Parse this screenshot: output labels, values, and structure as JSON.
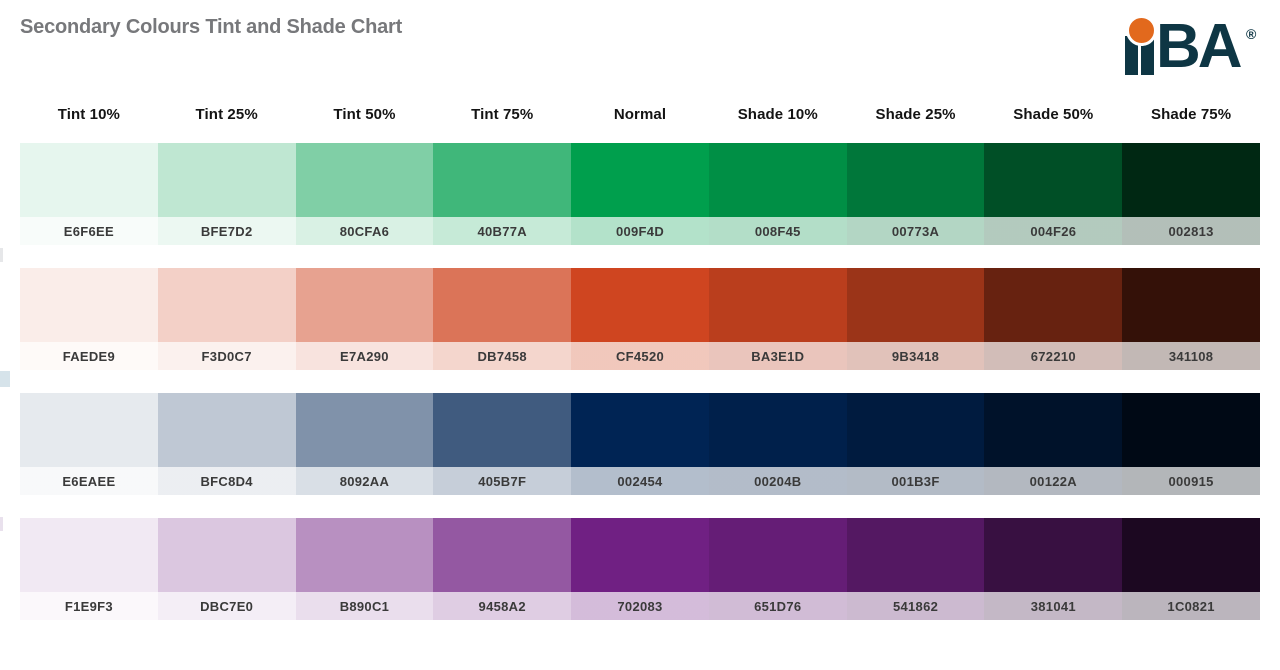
{
  "chart_data": {
    "type": "table",
    "title": "Secondary Colours Tint and Shade Chart",
    "columns": [
      "Tint 10%",
      "Tint 25%",
      "Tint 50%",
      "Tint 75%",
      "Normal",
      "Shade 10%",
      "Shade 25%",
      "Shade 50%",
      "Shade 75%"
    ],
    "rows": [
      {
        "name": "green",
        "colors": [
          "E6F6EE",
          "BFE7D2",
          "80CFA6",
          "40B77A",
          "009F4D",
          "008F45",
          "00773A",
          "004F26",
          "002813"
        ]
      },
      {
        "name": "red-orange",
        "colors": [
          "FAEDE9",
          "F3D0C7",
          "E7A290",
          "DB7458",
          "CF4520",
          "BA3E1D",
          "9B3418",
          "672210",
          "341108"
        ]
      },
      {
        "name": "navy",
        "colors": [
          "E6EAEE",
          "BFC8D4",
          "8092AA",
          "405B7F",
          "002454",
          "00204B",
          "001B3F",
          "00122A",
          "000915"
        ]
      },
      {
        "name": "purple",
        "colors": [
          "F1E9F3",
          "DBC7E0",
          "B890C1",
          "9458A2",
          "702083",
          "651D76",
          "541862",
          "381041",
          "1C0821"
        ]
      }
    ],
    "label_text_color": "#3a3a3a",
    "label_strip_white_overlay": 0.7,
    "legend_position": "none",
    "grid": false
  },
  "logo": {
    "icon": "iiba-logo",
    "text": "BA",
    "registered_mark": "®",
    "ink_color": "#0e3644",
    "dot_color": "#e2691d"
  },
  "edge_artifacts": [
    {
      "color": "#e6e7e9"
    },
    {
      "color": "#d6e3ea"
    },
    {
      "color": "#e9e1ed"
    }
  ]
}
